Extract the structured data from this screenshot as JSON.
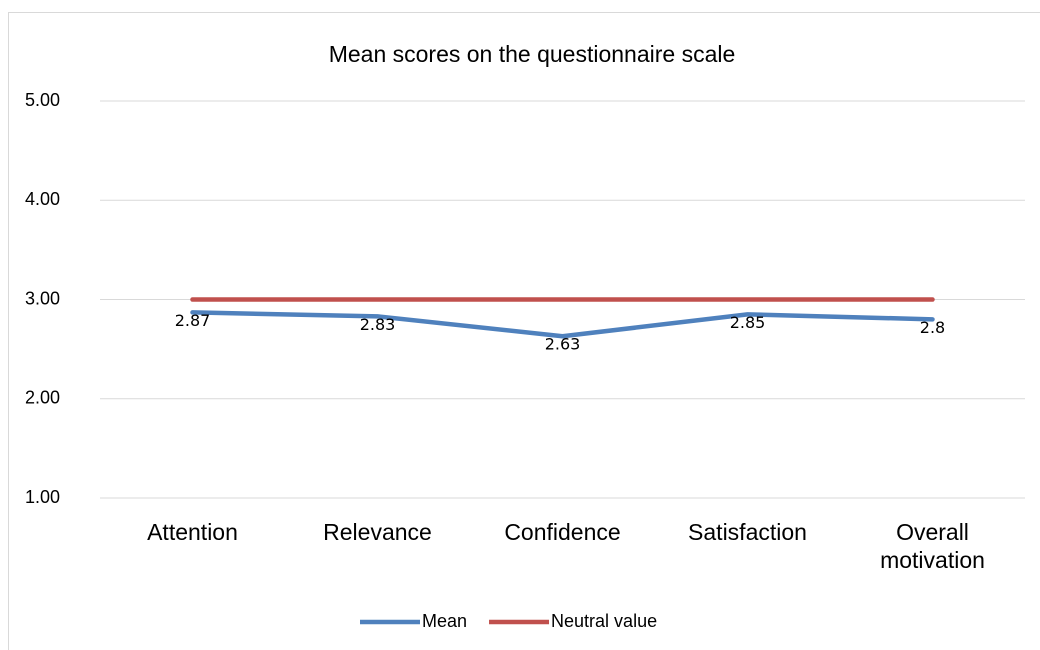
{
  "chart_data": {
    "type": "line",
    "title": "Mean scores on the questionnaire scale",
    "categories": [
      "Attention",
      "Relevance",
      "Confidence",
      "Satisfaction",
      "Overall motivation"
    ],
    "series": [
      {
        "name": "Mean",
        "color": "#4f81bd",
        "values": [
          2.87,
          2.83,
          2.63,
          2.85,
          2.8
        ],
        "data_labels": true
      },
      {
        "name": "Neutral value",
        "color": "#c0504d",
        "values": [
          3,
          3,
          3,
          3,
          3
        ],
        "data_labels": false
      }
    ],
    "ylim": [
      1,
      5
    ],
    "yticks": [
      {
        "value": 1,
        "label": "1.00"
      },
      {
        "value": 2,
        "label": "2.00"
      },
      {
        "value": 3,
        "label": "3.00"
      },
      {
        "value": 4,
        "label": "4.00"
      },
      {
        "value": 5,
        "label": "5.00"
      }
    ],
    "grid": true,
    "legend": "bottom"
  }
}
